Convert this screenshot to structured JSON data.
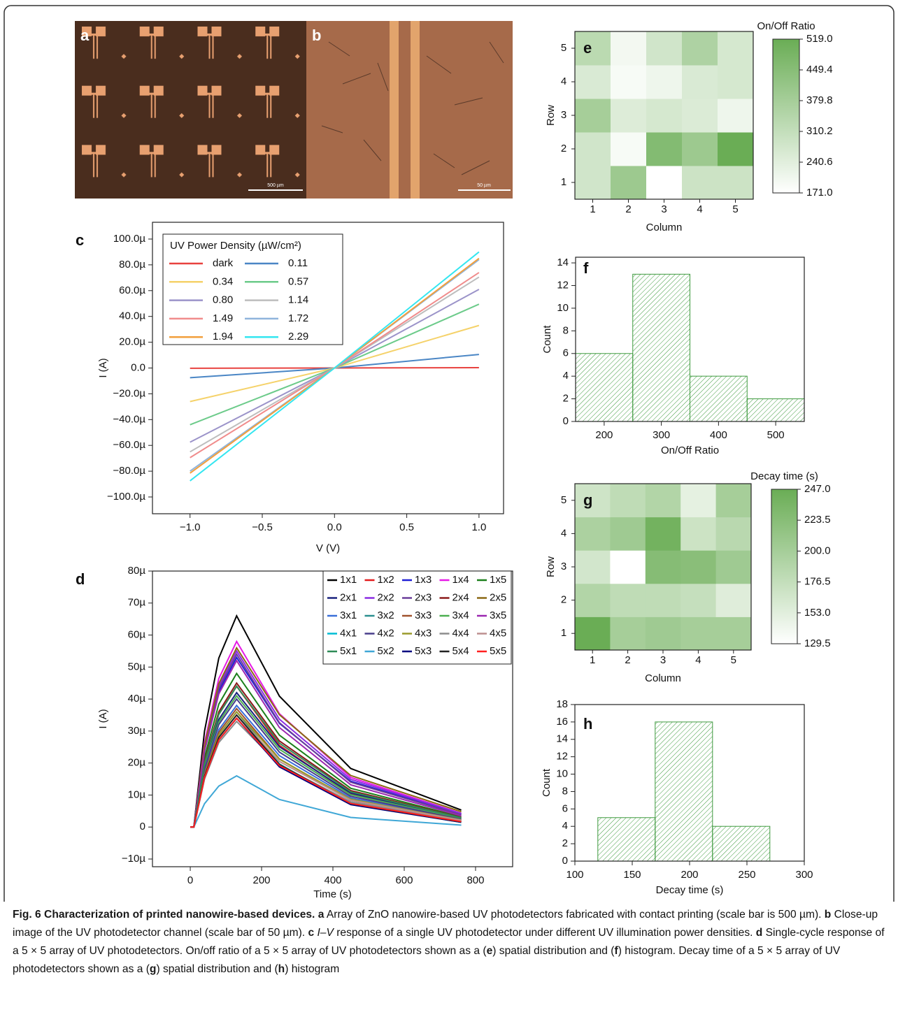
{
  "images": [
    {
      "panel": "a",
      "scale_bar": "500 µm"
    },
    {
      "panel": "b",
      "scale_bar": "50 µm"
    }
  ],
  "chart_data": [
    {
      "type": "line",
      "panel": "c",
      "xlabel": "V (V)",
      "ylabel": "I (A)",
      "legend_title": "UV Power Density (µW/cm²)",
      "legend_columns": 2,
      "x": [
        -1,
        0,
        1
      ],
      "xlim": [
        -1.26,
        1.17
      ],
      "xticks": [
        {
          "value": -1,
          "label": "−1.0"
        },
        {
          "value": -0.5,
          "label": "−0.5"
        },
        {
          "value": 0,
          "label": "0.0"
        },
        {
          "value": 0.5,
          "label": "0.5"
        },
        {
          "value": 1,
          "label": "1.0"
        }
      ],
      "ylim": [
        -0.000113,
        0.000113
      ],
      "yticks": [
        {
          "value": -0.0001,
          "label": "−100.0µ"
        },
        {
          "value": -8e-05,
          "label": "−80.0µ"
        },
        {
          "value": -6e-05,
          "label": "−60.0µ"
        },
        {
          "value": -4e-05,
          "label": "−40.0µ"
        },
        {
          "value": -2e-05,
          "label": "−20.0µ"
        },
        {
          "value": 0,
          "label": "0.0"
        },
        {
          "value": 2e-05,
          "label": "20.0µ"
        },
        {
          "value": 4e-05,
          "label": "40.0µ"
        },
        {
          "value": 6e-05,
          "label": "60.0µ"
        },
        {
          "value": 8e-05,
          "label": "80.0µ"
        },
        {
          "value": 0.0001,
          "label": "100.0µ"
        }
      ],
      "series": [
        {
          "name": "dark",
          "color": "#e8423f",
          "values": [
            -2e-07,
            0,
            3e-07
          ]
        },
        {
          "name": "0.11",
          "color": "#4a86c5",
          "values": [
            -7.5e-06,
            0,
            1.05e-05
          ]
        },
        {
          "name": "0.34",
          "color": "#f5d26a",
          "values": [
            -2.6e-05,
            0,
            3.3e-05
          ]
        },
        {
          "name": "0.57",
          "color": "#6ccb8a",
          "values": [
            -4.4e-05,
            0,
            4.95e-05
          ]
        },
        {
          "name": "0.80",
          "color": "#9b93c9",
          "values": [
            -5.75e-05,
            0,
            6.1e-05
          ]
        },
        {
          "name": "1.14",
          "color": "#bdbdbd",
          "values": [
            -6.5e-05,
            0,
            7.05e-05
          ]
        },
        {
          "name": "1.49",
          "color": "#f08c8c",
          "values": [
            -6.95e-05,
            0,
            7.4e-05
          ]
        },
        {
          "name": "1.72",
          "color": "#8fb4dc",
          "values": [
            -8e-05,
            0,
            8.4e-05
          ]
        },
        {
          "name": "1.94",
          "color": "#f2a03d",
          "values": [
            -8.15e-05,
            0,
            8.5e-05
          ]
        },
        {
          "name": "2.29",
          "color": "#34e6f0",
          "values": [
            -8.75e-05,
            0,
            9e-05
          ]
        }
      ]
    },
    {
      "type": "line",
      "panel": "d",
      "xlabel": "Time (s)",
      "ylabel": "I (A)",
      "legend_columns": 5,
      "x": [
        0,
        10,
        40,
        80,
        130,
        250,
        450,
        760
      ],
      "xlim": [
        -106,
        904
      ],
      "xticks": [
        0,
        200,
        400,
        600,
        800
      ],
      "ylim": [
        -1.24e-05,
        8e-05
      ],
      "yticks": [
        {
          "value": -1e-05,
          "label": "−10µ"
        },
        0,
        {
          "value": 1e-05,
          "label": "10µ"
        },
        {
          "value": 2e-05,
          "label": "20µ"
        },
        {
          "value": 3e-05,
          "label": "30µ"
        },
        {
          "value": 4e-05,
          "label": "40µ"
        },
        {
          "value": 5e-05,
          "label": "50µ"
        },
        {
          "value": 6e-05,
          "label": "60µ"
        },
        {
          "value": 7e-05,
          "label": "70µ"
        },
        {
          "value": 8e-05,
          "label": "80µ"
        }
      ],
      "series": [
        {
          "name": "1x1",
          "color": "#000000",
          "values": [
            0,
            0,
            3e-05,
            5.28e-05,
            6.6e-05,
            4.09e-05,
            1.83e-05,
            5.3e-06
          ]
        },
        {
          "name": "1x2",
          "color": "#e31a1c",
          "values": [
            0,
            0,
            2e-05,
            3.52e-05,
            4.4e-05,
            2.55e-05,
            1.03e-05,
            2.5e-06
          ]
        },
        {
          "name": "1x3",
          "color": "#1f1fd6",
          "values": [
            0,
            0,
            2.41e-05,
            4.24e-05,
            5.3e-05,
            3.24e-05,
            1.43e-05,
            4e-06
          ]
        },
        {
          "name": "1x4",
          "color": "#e619e6",
          "values": [
            0,
            0,
            2.64e-05,
            4.64e-05,
            5.8e-05,
            3.54e-05,
            1.55e-05,
            4.3e-06
          ]
        },
        {
          "name": "1x5",
          "color": "#1b7f1b",
          "values": [
            0,
            0,
            2.18e-05,
            3.84e-05,
            4.8e-05,
            2.87e-05,
            1.21e-05,
            3.2e-06
          ]
        },
        {
          "name": "2x1",
          "color": "#1a237e",
          "values": [
            0,
            0,
            1.91e-05,
            3.36e-05,
            4.2e-05,
            2.51e-05,
            1.06e-05,
            2.8e-06
          ]
        },
        {
          "name": "2x2",
          "color": "#8a2be2",
          "values": [
            0,
            0,
            2.5e-05,
            4.4e-05,
            5.5e-05,
            3.37e-05,
            1.49e-05,
            4.2e-06
          ]
        },
        {
          "name": "2x3",
          "color": "#6a3d9a",
          "values": [
            0,
            0,
            2.46e-05,
            4.32e-05,
            5.4e-05,
            3.26e-05,
            1.4e-05,
            3.8e-06
          ]
        },
        {
          "name": "2x4",
          "color": "#8b1a1a",
          "values": [
            0,
            0,
            2.05e-05,
            3.6e-05,
            4.5e-05,
            2.69e-05,
            1.14e-05,
            3e-06
          ]
        },
        {
          "name": "2x5",
          "color": "#8b6914",
          "values": [
            0,
            0,
            2.55e-05,
            4.48e-05,
            5.6e-05,
            3.51e-05,
            1.61e-05,
            4.8e-06
          ]
        },
        {
          "name": "3x1",
          "color": "#3a6fd8",
          "values": [
            0,
            0,
            1.73e-05,
            3.04e-05,
            3.8e-05,
            2.23e-05,
            9.1e-06,
            2.3e-06
          ]
        },
        {
          "name": "3x2",
          "color": "#2a8f8f",
          "values": [
            0,
            0,
            1.64e-05,
            2.88e-05,
            3.6e-05,
            1.97e-05,
            7.2e-06,
            1.5e-06
          ]
        },
        {
          "name": "3x3",
          "color": "#a0522d",
          "values": [
            0,
            0,
            1.68e-05,
            2.96e-05,
            3.7e-05,
            2.13e-05,
            8.4e-06,
            2e-06
          ]
        },
        {
          "name": "3x4",
          "color": "#4caf50",
          "values": [
            0,
            0,
            1.87e-05,
            3.28e-05,
            4.1e-05,
            2.43e-05,
            1.01e-05,
            2.6e-06
          ]
        },
        {
          "name": "3x5",
          "color": "#9c27b0",
          "values": [
            0,
            0,
            2.37e-05,
            4.16e-05,
            5.2e-05,
            3.11e-05,
            1.32e-05,
            3.5e-06
          ]
        },
        {
          "name": "4x1",
          "color": "#00bcd4",
          "values": [
            0,
            0,
            1.55e-05,
            2.72e-05,
            3.4e-05,
            1.95e-05,
            7.6e-06,
            1.8e-06
          ]
        },
        {
          "name": "4x2",
          "color": "#483d8b",
          "values": [
            0,
            0,
            1.82e-05,
            3.2e-05,
            4e-05,
            2.34e-05,
            9.6e-06,
            2.4e-06
          ]
        },
        {
          "name": "4x3",
          "color": "#9a9a2a",
          "values": [
            0,
            0,
            1.64e-05,
            2.88e-05,
            3.6e-05,
            2.12e-05,
            8.7e-06,
            2.2e-06
          ]
        },
        {
          "name": "4x4",
          "color": "#8c8c8c",
          "values": [
            0,
            0,
            1.5e-05,
            2.64e-05,
            3.3e-05,
            1.94e-05,
            7.9e-06,
            2e-06
          ]
        },
        {
          "name": "4x5",
          "color": "#bc8f8f",
          "values": [
            0,
            0,
            1.59e-05,
            2.8e-05,
            3.5e-05,
            2.05e-05,
            8.4e-06,
            2.1e-06
          ]
        },
        {
          "name": "5x1",
          "color": "#2e8b57",
          "values": [
            0,
            0,
            2e-05,
            3.52e-05,
            4.4e-05,
            2.62e-05,
            1.1e-05,
            2.9e-06
          ]
        },
        {
          "name": "5x2",
          "color": "#3fa7d6",
          "values": [
            0,
            0,
            7.3e-06,
            1.28e-05,
            1.6e-05,
            8.6e-06,
            3e-06,
            6e-07
          ]
        },
        {
          "name": "5x3",
          "color": "#000080",
          "values": [
            0,
            0,
            1.55e-05,
            2.72e-05,
            3.4e-05,
            1.88e-05,
            7e-06,
            1.5e-06
          ]
        },
        {
          "name": "5x4",
          "color": "#222222",
          "values": [
            0,
            0,
            1.59e-05,
            2.8e-05,
            3.5e-05,
            1.95e-05,
            7.3e-06,
            1.6e-06
          ]
        },
        {
          "name": "5x5",
          "color": "#ff2020",
          "values": [
            0,
            0,
            1.55e-05,
            2.72e-05,
            3.4e-05,
            1.92e-05,
            7.4e-06,
            1.7e-06
          ]
        }
      ]
    },
    {
      "type": "heatmap",
      "panel": "e",
      "xlabel": "Column",
      "ylabel": "Row",
      "colorbar_label": "On/Off Ratio",
      "columns": [
        "1",
        "2",
        "3",
        "4",
        "5"
      ],
      "rows": [
        "1",
        "2",
        "3",
        "4",
        "5"
      ],
      "values": [
        [
          280,
          400,
          171,
          290,
          290
        ],
        [
          280,
          190,
          460,
          400,
          519
        ],
        [
          380,
          250,
          270,
          255,
          210
        ],
        [
          260,
          190,
          210,
          260,
          270
        ],
        [
          330,
          200,
          280,
          360,
          270
        ]
      ],
      "zlim": [
        171,
        519
      ],
      "zticks": [
        {
          "value": 171,
          "label": "171.0"
        },
        240.6,
        310.2,
        379.8,
        449.4,
        {
          "value": 519,
          "label": "519.0"
        }
      ],
      "colors": [
        "#ffffff",
        "#6aad55"
      ]
    },
    {
      "type": "histogram",
      "panel": "f",
      "xlabel": "On/Off Ratio",
      "ylabel": "Count",
      "bins": [
        150,
        250,
        350,
        450,
        550
      ],
      "values": [
        6,
        13,
        4,
        2
      ],
      "color": "#3e9a3e",
      "xlim": [
        150,
        550
      ],
      "xticks": [
        200,
        300,
        400,
        500
      ],
      "ylim": [
        0,
        14.5
      ],
      "yticks": [
        0,
        2,
        4,
        6,
        8,
        10,
        12,
        14
      ]
    },
    {
      "type": "heatmap",
      "panel": "g",
      "xlabel": "Column",
      "ylabel": "Row",
      "colorbar_label": "Decay time (s)",
      "columns": [
        "1",
        "2",
        "3",
        "4",
        "5"
      ],
      "rows": [
        "1",
        "2",
        "3",
        "4",
        "5"
      ],
      "values": [
        [
          247,
          200,
          205,
          200,
          200
        ],
        [
          190,
          180,
          180,
          175,
          155
        ],
        [
          165,
          129.5,
          225,
          222,
          205
        ],
        [
          195,
          205,
          240,
          170,
          185
        ],
        [
          168,
          180,
          190,
          150,
          200
        ]
      ],
      "zlim": [
        129.5,
        247
      ],
      "zticks": [
        129.5,
        {
          "value": 153,
          "label": "153.0"
        },
        176.5,
        {
          "value": 200,
          "label": "200.0"
        },
        223.5,
        {
          "value": 247,
          "label": "247.0"
        }
      ],
      "colors": [
        "#ffffff",
        "#6aad55"
      ]
    },
    {
      "type": "histogram",
      "panel": "h",
      "xlabel": "Decay time (s)",
      "ylabel": "Count",
      "bins": [
        120,
        170,
        220,
        270
      ],
      "values": [
        5,
        16,
        4
      ],
      "color": "#3e9a3e",
      "xlim": [
        100,
        300
      ],
      "xticks": [
        100,
        150,
        200,
        250,
        300
      ],
      "ylim": [
        0,
        18
      ],
      "yticks": [
        0,
        2,
        4,
        6,
        8,
        10,
        12,
        14,
        16,
        18
      ]
    }
  ],
  "caption": {
    "segments": [
      {
        "text": "Fig. 6 Characterization of printed nanowire-based devices.",
        "style": "bold"
      },
      {
        "text": " a",
        "style": "bold"
      },
      {
        "text": " Array of ZnO nanowire-based UV photodetectors fabricated with contact printing (scale bar is 500 µm)."
      },
      {
        "text": " b",
        "style": "bold"
      },
      {
        "text": " Close-up image of the UV photodetector channel (scale bar of 50 µm)."
      },
      {
        "text": " c",
        "style": "bold"
      },
      {
        "text": " I–V",
        "style": "italic"
      },
      {
        "text": " response of a single UV photodetector under different UV illumination power densities."
      },
      {
        "text": " d",
        "style": "bold"
      },
      {
        "text": " Single-cycle response of a 5 × 5 array of UV photodetectors. On/off ratio of a 5 × 5 array of UV photodetectors shown as a ("
      },
      {
        "text": "e",
        "style": "bold"
      },
      {
        "text": ") spatial distribution and ("
      },
      {
        "text": "f",
        "style": "bold"
      },
      {
        "text": ") histogram. Decay time of a 5 × 5 array of UV photodetectors shown as a ("
      },
      {
        "text": "g",
        "style": "bold"
      },
      {
        "text": ") spatial distribution and ("
      },
      {
        "text": "h",
        "style": "bold"
      },
      {
        "text": ") histogram"
      }
    ]
  }
}
